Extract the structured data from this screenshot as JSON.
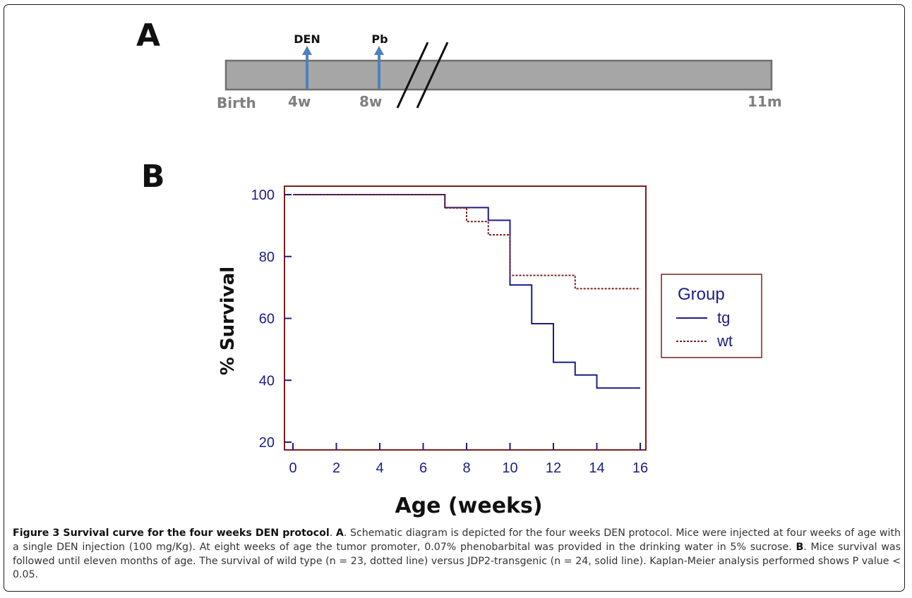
{
  "panel_a": {
    "letter": "A",
    "markers": [
      {
        "label": "DEN",
        "at": "4w"
      },
      {
        "label": "Pb",
        "at": "8w"
      }
    ],
    "labels": {
      "start": "Birth",
      "w4": "4w",
      "w8": "8w",
      "end": "11m"
    },
    "colors": {
      "bar": "#a6a6a6",
      "arrow": "#4f81bd",
      "label": "#7f7f7f"
    }
  },
  "panel_b": {
    "letter": "B"
  },
  "chart_data": {
    "type": "line",
    "title": "",
    "xlabel": "Age (weeks)",
    "ylabel": "% Survival",
    "xlim": [
      0,
      16
    ],
    "ylim": [
      20,
      100
    ],
    "xticks": [
      0,
      2,
      4,
      6,
      8,
      10,
      12,
      14,
      16
    ],
    "yticks": [
      20,
      40,
      60,
      80,
      100
    ],
    "step": true,
    "legend": {
      "title": "Group",
      "position": "right"
    },
    "series": [
      {
        "name": "tg",
        "style": "solid",
        "color": "#1c1c8a",
        "x": [
          0,
          7,
          9,
          10,
          11,
          12,
          13,
          14,
          16
        ],
        "y": [
          100,
          95.8,
          91.7,
          70.8,
          58.3,
          45.8,
          41.7,
          37.5,
          37.5
        ]
      },
      {
        "name": "wt",
        "style": "dotted",
        "color": "#7b1f1f",
        "x": [
          0,
          7,
          8,
          9,
          10,
          13,
          16
        ],
        "y": [
          100,
          95.7,
          91.3,
          87.0,
          73.9,
          69.6,
          69.6
        ]
      }
    ],
    "colors": {
      "frame": "#7b1f1f",
      "ticks": "#1c1c8a"
    }
  },
  "caption": {
    "title": "Figure 3 Survival curve for the four weeks DEN protocol",
    "part1": ". ",
    "label_a": "A",
    "part2": ". Schematic diagram is depicted for the four weeks DEN protocol. Mice were injected at four weeks of age with a single DEN injection (100 mg/Kg). At eight weeks of age the tumor promoter, 0.07% phenobarbital was provided in the drinking water in 5% sucrose. ",
    "label_b": "B",
    "part3": ". Mice survival was followed until eleven months of age. The survival of wild type (n = 23, dotted line) versus JDP2-transgenic (n = 24, solid line). Kaplan-Meier analysis performed shows P value < 0.05."
  }
}
